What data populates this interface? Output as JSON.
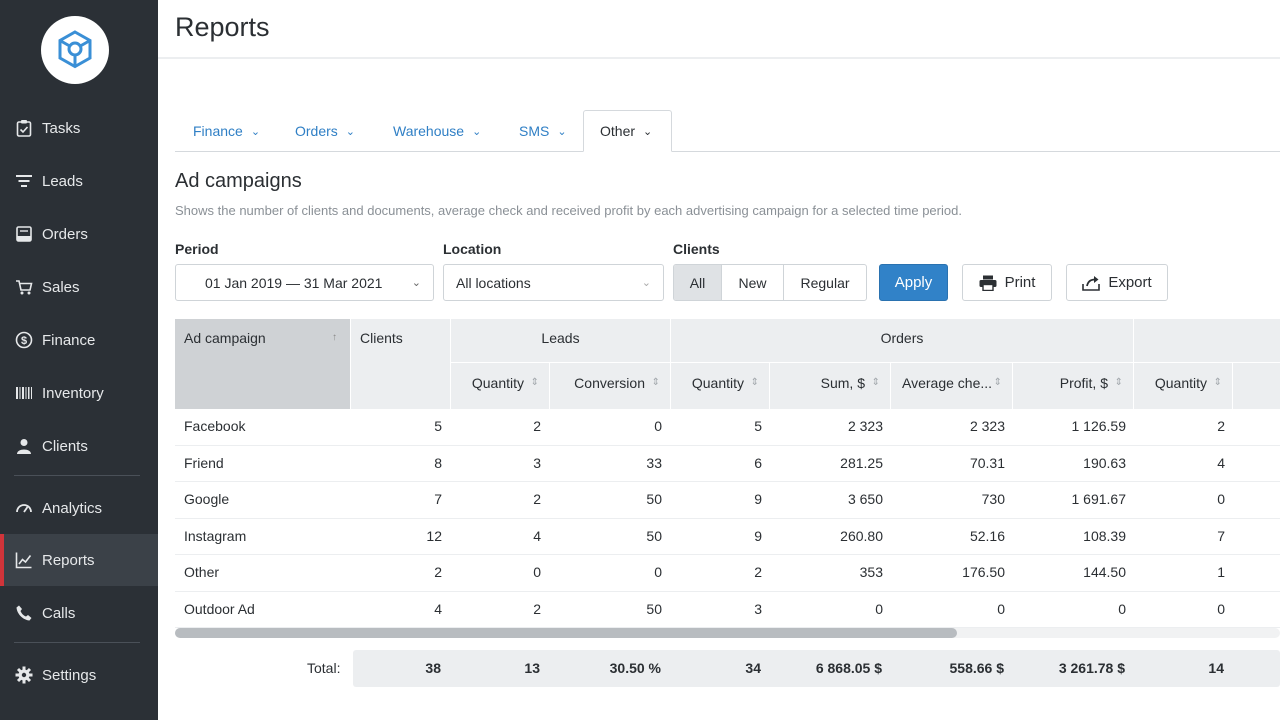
{
  "sidebar": {
    "items": [
      {
        "label": "Tasks",
        "icon": "clipboard-check-icon"
      },
      {
        "label": "Leads",
        "icon": "funnel-icon"
      },
      {
        "label": "Orders",
        "icon": "inbox-icon"
      },
      {
        "label": "Sales",
        "icon": "cart-icon"
      },
      {
        "label": "Finance",
        "icon": "dollar-icon"
      },
      {
        "label": "Inventory",
        "icon": "barcode-icon"
      },
      {
        "label": "Clients",
        "icon": "user-icon"
      },
      {
        "label": "Analytics",
        "icon": "gauge-icon"
      },
      {
        "label": "Reports",
        "icon": "chart-line-icon",
        "active": true
      },
      {
        "label": "Calls",
        "icon": "phone-icon"
      },
      {
        "label": "Settings",
        "icon": "gear-icon"
      }
    ]
  },
  "header": {
    "title": "Reports"
  },
  "tabs": [
    {
      "label": "Finance"
    },
    {
      "label": "Orders"
    },
    {
      "label": "Warehouse"
    },
    {
      "label": "SMS"
    },
    {
      "label": "Other",
      "active": true
    }
  ],
  "section": {
    "title": "Ad campaigns",
    "description": "Shows the number of clients and documents, average check and received profit by each advertising campaign for a selected time period."
  },
  "filters": {
    "period_label": "Period",
    "period_value": "01 Jan 2019 — 31 Mar 2021",
    "location_label": "Location",
    "location_value": "All locations",
    "clients_label": "Clients",
    "clients_options": [
      "All",
      "New",
      "Regular"
    ],
    "clients_selected": "All",
    "apply_label": "Apply",
    "print_label": "Print",
    "export_label": "Export"
  },
  "table": {
    "col_ad_campaign": "Ad campaign",
    "col_clients": "Clients",
    "group_leads": "Leads",
    "group_orders": "Orders",
    "col_leads_quantity": "Quantity",
    "col_leads_conversion": "Conversion",
    "col_orders_quantity": "Quantity",
    "col_orders_sum": "Sum, $",
    "col_orders_avg": "Average che...",
    "col_orders_profit": "Profit, $",
    "col_next_quantity": "Quantity",
    "rows": [
      {
        "name": "Facebook",
        "clients": "5",
        "leads_qty": "2",
        "conversion": "0",
        "orders_qty": "5",
        "sum": "2 323",
        "avg": "2 323",
        "profit": "1 126.59",
        "next_qty": "2"
      },
      {
        "name": "Friend",
        "clients": "8",
        "leads_qty": "3",
        "conversion": "33",
        "orders_qty": "6",
        "sum": "281.25",
        "avg": "70.31",
        "profit": "190.63",
        "next_qty": "4"
      },
      {
        "name": "Google",
        "clients": "7",
        "leads_qty": "2",
        "conversion": "50",
        "orders_qty": "9",
        "sum": "3 650",
        "avg": "730",
        "profit": "1 691.67",
        "next_qty": "0"
      },
      {
        "name": "Instagram",
        "clients": "12",
        "leads_qty": "4",
        "conversion": "50",
        "orders_qty": "9",
        "sum": "260.80",
        "avg": "52.16",
        "profit": "108.39",
        "next_qty": "7"
      },
      {
        "name": "Other",
        "clients": "2",
        "leads_qty": "0",
        "conversion": "0",
        "orders_qty": "2",
        "sum": "353",
        "avg": "176.50",
        "profit": "144.50",
        "next_qty": "1"
      },
      {
        "name": "Outdoor Ad",
        "clients": "4",
        "leads_qty": "2",
        "conversion": "50",
        "orders_qty": "3",
        "sum": "0",
        "avg": "0",
        "profit": "0",
        "next_qty": "0"
      }
    ],
    "total": {
      "label": "Total:",
      "clients": "38",
      "leads_qty": "13",
      "conversion": "30.50 %",
      "orders_qty": "34",
      "sum": "6 868.05 $",
      "avg": "558.66 $",
      "profit": "3 261.78 $",
      "next_qty": "14"
    }
  },
  "colors": {
    "sidebar_bg": "#2b3036",
    "active_accent": "#d0343a",
    "primary": "#3182c8",
    "tab_link": "#2f7fc5",
    "logo_stroke": "#3a8fd6"
  }
}
